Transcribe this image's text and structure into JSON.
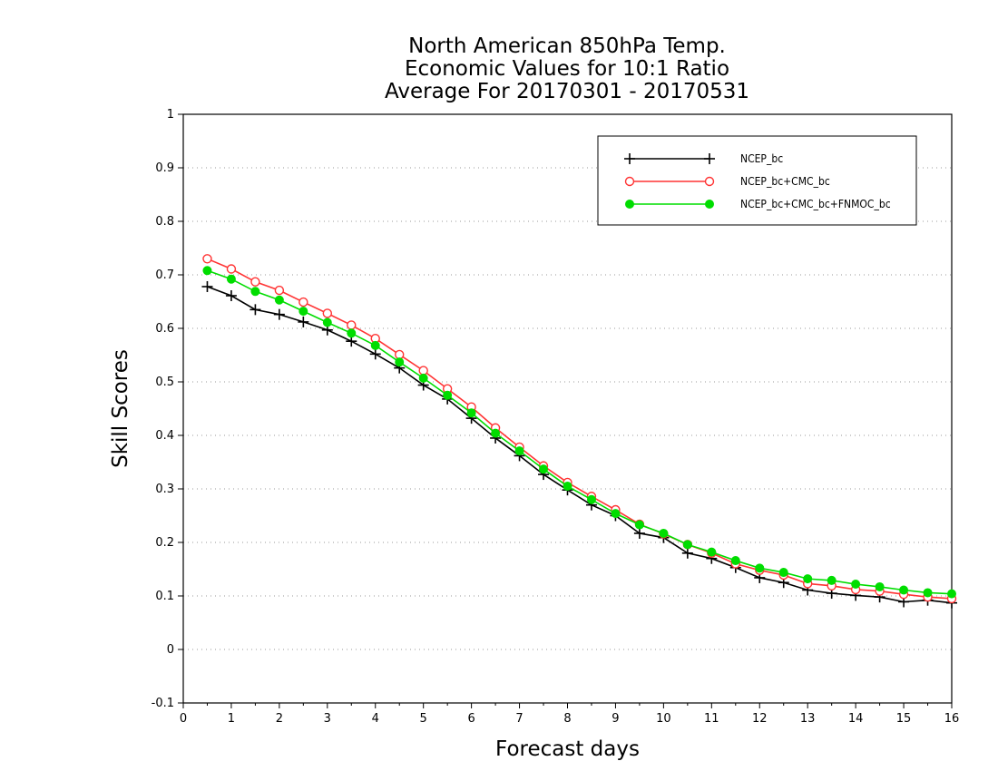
{
  "chart_data": {
    "type": "line",
    "title": [
      "North American 850hPa Temp.",
      "Economic Values for 10:1 Ratio",
      "Average For 20170301 - 20170531"
    ],
    "xlabel": "Forecast days",
    "ylabel": "Skill Scores",
    "xlim": [
      0,
      16
    ],
    "ylim": [
      -0.1,
      1
    ],
    "xticks": [
      0,
      1,
      2,
      3,
      4,
      5,
      6,
      7,
      8,
      9,
      10,
      11,
      12,
      13,
      14,
      15,
      16
    ],
    "yticks": [
      -0.1,
      0,
      0.1,
      0.2,
      0.3,
      0.4,
      0.5,
      0.6,
      0.7,
      0.8,
      0.9,
      1
    ],
    "ytick_labels": [
      "-0.1",
      "0",
      "0.1",
      "0.2",
      "0.3",
      "0.4",
      "0.5",
      "0.6",
      "0.7",
      "0.8",
      "0.9",
      "1"
    ],
    "grid": "horizontal dotted",
    "legend_position": "top-right",
    "x": [
      0.5,
      1,
      1.5,
      2,
      2.5,
      3,
      3.5,
      4,
      4.5,
      5,
      5.5,
      6,
      6.5,
      7,
      7.5,
      8,
      8.5,
      9,
      9.5,
      10,
      10.5,
      11,
      11.5,
      12,
      12.5,
      13,
      13.5,
      14,
      14.5,
      15,
      15.5,
      16
    ],
    "series": [
      {
        "name": "NCEP_bc",
        "color": "#000000",
        "marker": "plus",
        "values": [
          0.678,
          0.661,
          0.635,
          0.626,
          0.612,
          0.597,
          0.576,
          0.552,
          0.526,
          0.494,
          0.468,
          0.432,
          0.395,
          0.362,
          0.327,
          0.298,
          0.27,
          0.25,
          0.217,
          0.209,
          0.18,
          0.17,
          0.153,
          0.134,
          0.125,
          0.111,
          0.105,
          0.101,
          0.098,
          0.089,
          0.092,
          0.087
        ]
      },
      {
        "name": "NCEP_bc+CMC_bc",
        "color": "#ff3333",
        "marker": "open-circle",
        "values": [
          0.73,
          0.711,
          0.687,
          0.671,
          0.649,
          0.628,
          0.606,
          0.581,
          0.551,
          0.521,
          0.487,
          0.453,
          0.414,
          0.378,
          0.343,
          0.312,
          0.286,
          0.261,
          0.234,
          0.216,
          0.196,
          0.18,
          0.16,
          0.148,
          0.139,
          0.123,
          0.119,
          0.112,
          0.109,
          0.103,
          0.098,
          0.095
        ]
      },
      {
        "name": "NCEP_bc+CMC_bc+FNMOC_bc",
        "color": "#00dd00",
        "marker": "filled-circle",
        "values": [
          0.708,
          0.692,
          0.669,
          0.653,
          0.632,
          0.611,
          0.591,
          0.568,
          0.537,
          0.507,
          0.475,
          0.442,
          0.404,
          0.371,
          0.337,
          0.305,
          0.28,
          0.254,
          0.233,
          0.217,
          0.196,
          0.182,
          0.166,
          0.152,
          0.144,
          0.132,
          0.129,
          0.122,
          0.117,
          0.111,
          0.106,
          0.104
        ]
      }
    ]
  }
}
